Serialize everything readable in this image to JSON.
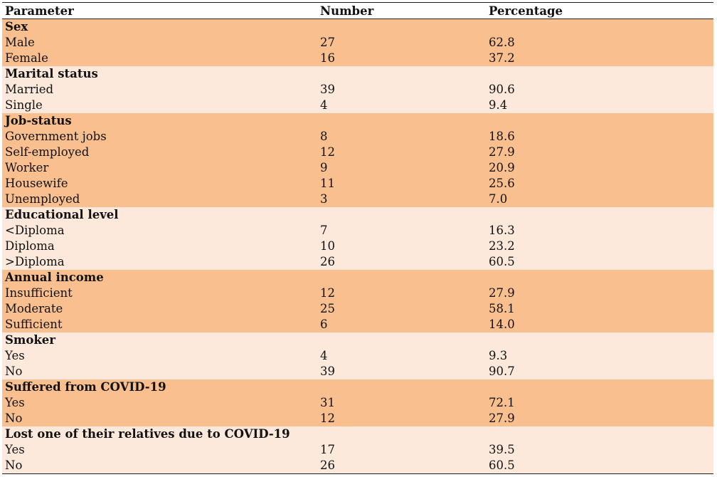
{
  "header": {
    "parameter": "Parameter",
    "number": "Number",
    "percentage": "Percentage"
  },
  "groups": [
    {
      "title": "Sex",
      "rows": [
        {
          "label": "Male",
          "number": "27",
          "percentage": "62.8"
        },
        {
          "label": "Female",
          "number": "16",
          "percentage": "37.2"
        }
      ]
    },
    {
      "title": "Marital status",
      "rows": [
        {
          "label": "Married",
          "number": "39",
          "percentage": "90.6"
        },
        {
          "label": "Single",
          "number": "4",
          "percentage": "9.4"
        }
      ]
    },
    {
      "title": "Job-status",
      "rows": [
        {
          "label": "Government jobs",
          "number": "8",
          "percentage": "18.6"
        },
        {
          "label": "Self-employed",
          "number": "12",
          "percentage": "27.9"
        },
        {
          "label": "Worker",
          "number": "9",
          "percentage": "20.9"
        },
        {
          "label": "Housewife",
          "number": "11",
          "percentage": "25.6"
        },
        {
          "label": "Unemployed",
          "number": "3",
          "percentage": "7.0"
        }
      ]
    },
    {
      "title": "Educational level",
      "rows": [
        {
          "label": "<Diploma",
          "number": "7",
          "percentage": "16.3"
        },
        {
          "label": "Diploma",
          "number": "10",
          "percentage": "23.2"
        },
        {
          "label": ">Diploma",
          "number": "26",
          "percentage": "60.5"
        }
      ]
    },
    {
      "title": "Annual income",
      "rows": [
        {
          "label": "Insufficient",
          "number": "12",
          "percentage": "27.9"
        },
        {
          "label": "Moderate",
          "number": "25",
          "percentage": "58.1"
        },
        {
          "label": "Sufficient",
          "number": "6",
          "percentage": "14.0"
        }
      ]
    },
    {
      "title": "Smoker",
      "rows": [
        {
          "label": "Yes",
          "number": "4",
          "percentage": "9.3"
        },
        {
          "label": "No",
          "number": "39",
          "percentage": "90.7"
        }
      ]
    },
    {
      "title": "Suffered from COVID-19",
      "rows": [
        {
          "label": "Yes",
          "number": "31",
          "percentage": "72.1"
        },
        {
          "label": "No",
          "number": "12",
          "percentage": "27.9"
        }
      ]
    },
    {
      "title": "Lost one of their relatives due to COVID-19",
      "rows": [
        {
          "label": "Yes",
          "number": "17",
          "percentage": "39.5"
        },
        {
          "label": "No",
          "number": "26",
          "percentage": "60.5"
        }
      ]
    }
  ],
  "colors": {
    "dark_band": "#f9bf8f",
    "light_band": "#fde9db"
  }
}
